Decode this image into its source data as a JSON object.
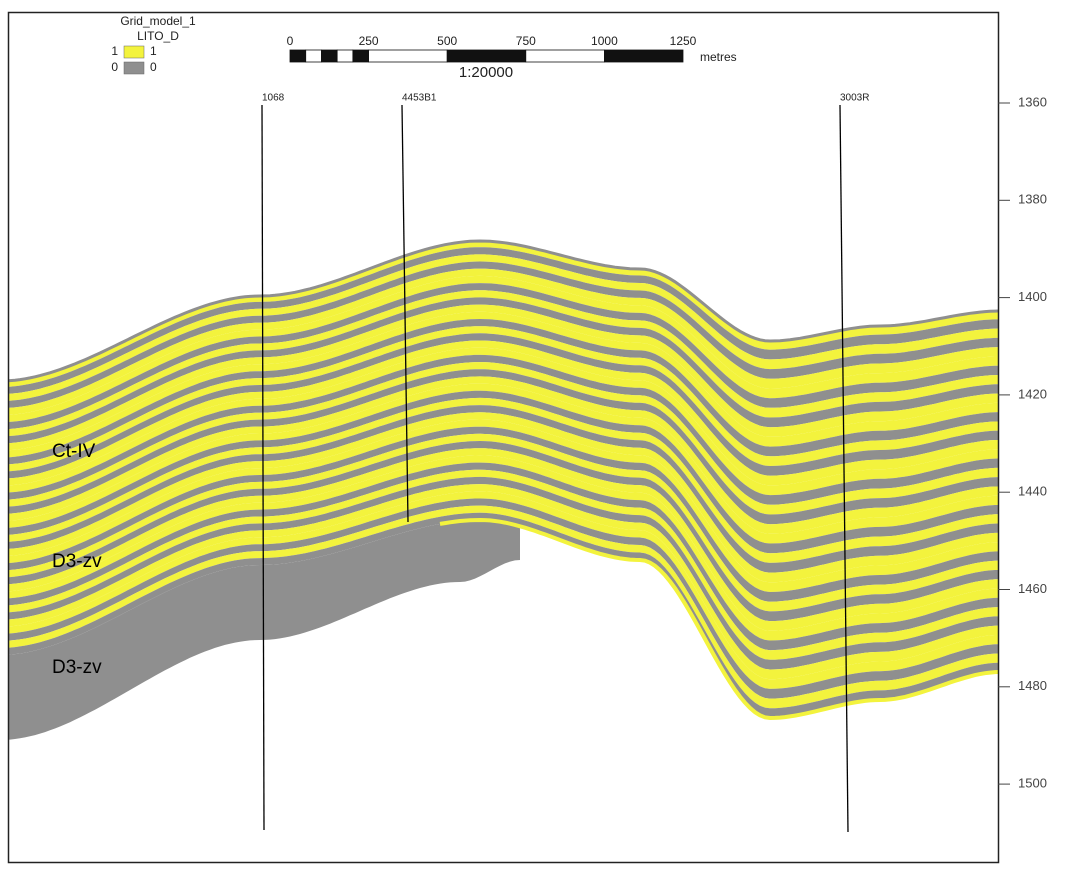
{
  "legend": {
    "title": "Grid_model_1",
    "property": "LITO_D",
    "items": [
      {
        "key": "1",
        "color": "#f3f33d",
        "label": "1"
      },
      {
        "key": "0",
        "color": "#8f8f8f",
        "label": "0"
      }
    ]
  },
  "scale_bar": {
    "ticks": [
      "0",
      "250",
      "500",
      "750",
      "1000",
      "1250"
    ],
    "unit": "metres",
    "ratio": "1:20000"
  },
  "wells": [
    {
      "name": "1068"
    },
    {
      "name": "4453B1"
    },
    {
      "name": "3003R"
    }
  ],
  "formations": [
    "Ct-IV",
    "D3-zv",
    "D3-zv"
  ],
  "depth_axis": {
    "ticks": [
      1360,
      1380,
      1400,
      1420,
      1440,
      1460,
      1480,
      1500
    ]
  }
}
